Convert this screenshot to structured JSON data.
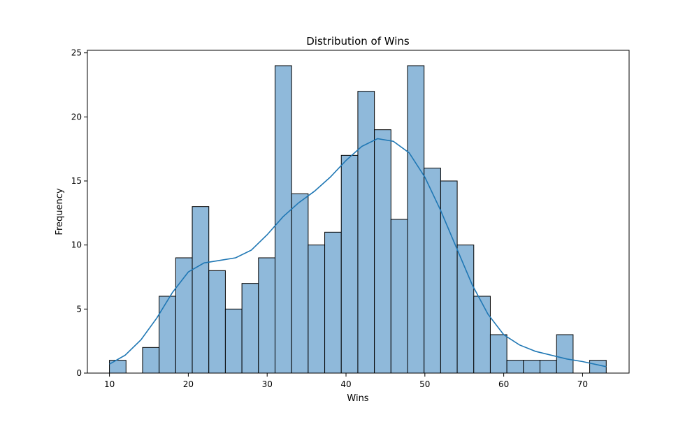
{
  "chart_data": {
    "type": "bar",
    "title": "Distribution of Wins",
    "xlabel": "Wins",
    "ylabel": "Frequency",
    "xlim": [
      7.2,
      75.9
    ],
    "ylim": [
      0,
      25.2
    ],
    "xticks": [
      10,
      20,
      30,
      40,
      50,
      60,
      70
    ],
    "yticks": [
      0,
      5,
      10,
      15,
      20,
      25
    ],
    "bins": [
      {
        "x0": 10.0,
        "x1": 12.1,
        "count": 1
      },
      {
        "x0": 12.1,
        "x1": 14.2,
        "count": 0
      },
      {
        "x0": 14.2,
        "x1": 16.3,
        "count": 2
      },
      {
        "x0": 16.3,
        "x1": 18.4,
        "count": 6
      },
      {
        "x0": 18.4,
        "x1": 20.5,
        "count": 9
      },
      {
        "x0": 20.5,
        "x1": 22.6,
        "count": 13
      },
      {
        "x0": 22.6,
        "x1": 24.7,
        "count": 8
      },
      {
        "x0": 24.7,
        "x1": 26.8,
        "count": 5
      },
      {
        "x0": 26.8,
        "x1": 28.9,
        "count": 7
      },
      {
        "x0": 28.9,
        "x1": 31.0,
        "count": 9
      },
      {
        "x0": 31.0,
        "x1": 33.1,
        "count": 24
      },
      {
        "x0": 33.1,
        "x1": 35.2,
        "count": 14
      },
      {
        "x0": 35.2,
        "x1": 37.3,
        "count": 10
      },
      {
        "x0": 37.3,
        "x1": 39.4,
        "count": 11
      },
      {
        "x0": 39.4,
        "x1": 41.5,
        "count": 17
      },
      {
        "x0": 41.5,
        "x1": 43.6,
        "count": 22
      },
      {
        "x0": 43.6,
        "x1": 45.7,
        "count": 19
      },
      {
        "x0": 45.7,
        "x1": 47.8,
        "count": 12
      },
      {
        "x0": 47.8,
        "x1": 49.9,
        "count": 24
      },
      {
        "x0": 49.9,
        "x1": 52.0,
        "count": 16
      },
      {
        "x0": 52.0,
        "x1": 54.1,
        "count": 15
      },
      {
        "x0": 54.1,
        "x1": 56.2,
        "count": 10
      },
      {
        "x0": 56.2,
        "x1": 58.3,
        "count": 6
      },
      {
        "x0": 58.3,
        "x1": 60.4,
        "count": 3
      },
      {
        "x0": 60.4,
        "x1": 62.5,
        "count": 1
      },
      {
        "x0": 62.5,
        "x1": 64.6,
        "count": 1
      },
      {
        "x0": 64.6,
        "x1": 66.7,
        "count": 1
      },
      {
        "x0": 66.7,
        "x1": 68.8,
        "count": 3
      },
      {
        "x0": 68.8,
        "x1": 70.9,
        "count": 0
      },
      {
        "x0": 70.9,
        "x1": 73.0,
        "count": 1
      }
    ],
    "kde": {
      "x": [
        10,
        12,
        14,
        16,
        18,
        20,
        22,
        24,
        26,
        28,
        30,
        32,
        34,
        36,
        38,
        40,
        42,
        44,
        46,
        48,
        50,
        52,
        54,
        56,
        58,
        60,
        62,
        64,
        66,
        68,
        70,
        73
      ],
      "y": [
        0.7,
        1.4,
        2.6,
        4.3,
        6.3,
        7.9,
        8.6,
        8.8,
        9.0,
        9.6,
        10.8,
        12.2,
        13.3,
        14.2,
        15.3,
        16.6,
        17.7,
        18.3,
        18.1,
        17.2,
        15.3,
        12.7,
        9.8,
        6.9,
        4.6,
        3.0,
        2.2,
        1.7,
        1.4,
        1.1,
        0.9,
        0.5
      ]
    },
    "colors": {
      "bar_fill": "#8fb9da",
      "bar_edge": "#000000",
      "kde_line": "#1f77b4"
    },
    "grid": false,
    "legend": "none"
  }
}
